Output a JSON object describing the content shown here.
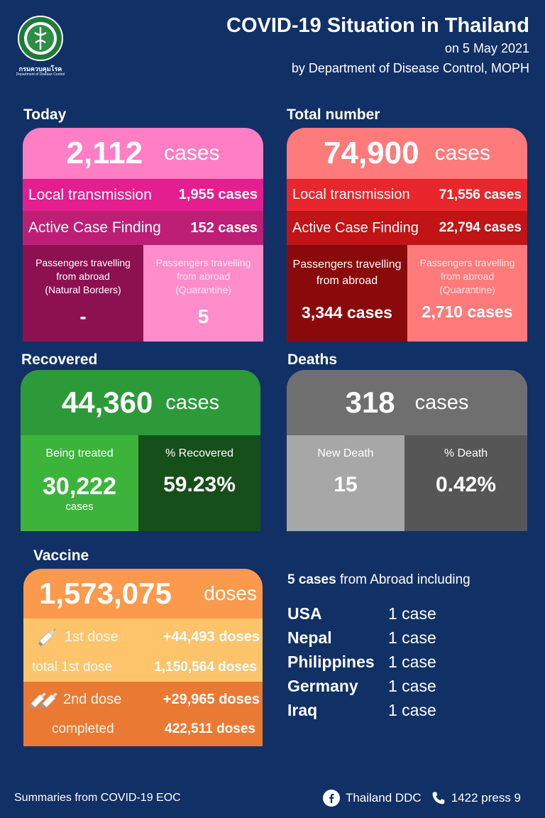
{
  "header": {
    "title": "COVID-19 Situation in Thailand",
    "date_line": "on  5 May 2021",
    "source_line": "by Department of Disease Control, MOPH",
    "logo_text": "กรมควบคุมโรค",
    "logo_subtext": "Department of Disease Control"
  },
  "today": {
    "heading": "Today",
    "total": "2,112",
    "total_unit": "cases",
    "local_label": "Local transmission",
    "local_value": "1,955 cases",
    "acf_label": "Active Case Finding",
    "acf_value": "152 cases",
    "natural_label_1": "Passengers travelling",
    "natural_label_2": "from abroad",
    "natural_label_3": "(Natural Borders)",
    "natural_value": "-",
    "quarantine_label_1": "Passengers travelling",
    "quarantine_label_2": "from abroad",
    "quarantine_label_3": "(Quarantine)",
    "quarantine_value": "5"
  },
  "total": {
    "heading": "Total number",
    "total": "74,900",
    "total_unit": "cases",
    "local_label": "Local transmission",
    "local_value": "71,556 cases",
    "acf_label": "Active Case Finding",
    "acf_value": "22,794 cases",
    "abroad_label_1": "Passengers travelling",
    "abroad_label_2": "from abroad",
    "abroad_value": "3,344 cases",
    "quarantine_label_1": "Passengers travelling",
    "quarantine_label_2": "from abroad",
    "quarantine_label_3": "(Quarantine)",
    "quarantine_value": "2,710 cases"
  },
  "recovered": {
    "heading": "Recovered",
    "total": "44,360",
    "total_unit": "cases",
    "treated_label": "Being treated",
    "treated_value": "30,222",
    "treated_unit": "cases",
    "pct_label": "% Recovered",
    "pct_value": "59.23%"
  },
  "deaths": {
    "heading": "Deaths",
    "total": "318",
    "total_unit": "cases",
    "new_label": "New Death",
    "new_value": "15",
    "pct_label": "% Death",
    "pct_value": "0.42%"
  },
  "vaccine": {
    "heading": "Vaccine",
    "total": "1,573,075",
    "total_unit": "doses",
    "dose1_label": "1st dose",
    "dose1_value": "+44,493 doses",
    "total1_label": "total 1st dose",
    "total1_value": "1,150,564 doses",
    "dose2_label": "2nd dose",
    "dose2_value": "+29,965 doses",
    "completed_label": "completed",
    "completed_value": "422,511 doses"
  },
  "abroad": {
    "intro_bold": "5 cases",
    "intro_rest": " from Abroad including",
    "countries": [
      {
        "name": "USA",
        "count": "1 case"
      },
      {
        "name": "Nepal",
        "count": "1 case"
      },
      {
        "name": "Philippines",
        "count": "1 case"
      },
      {
        "name": "Germany",
        "count": "1 case"
      },
      {
        "name": "Iraq",
        "count": "1 case"
      }
    ]
  },
  "footer": {
    "summary": "Summaries  from COVID-19 EOC",
    "facebook": "Thailand DDC",
    "hotline": "1422 press 9"
  },
  "icons": [
    "ddc-logo-icon",
    "syringe-icon",
    "double-syringe-icon",
    "facebook-icon",
    "phone-icon"
  ]
}
